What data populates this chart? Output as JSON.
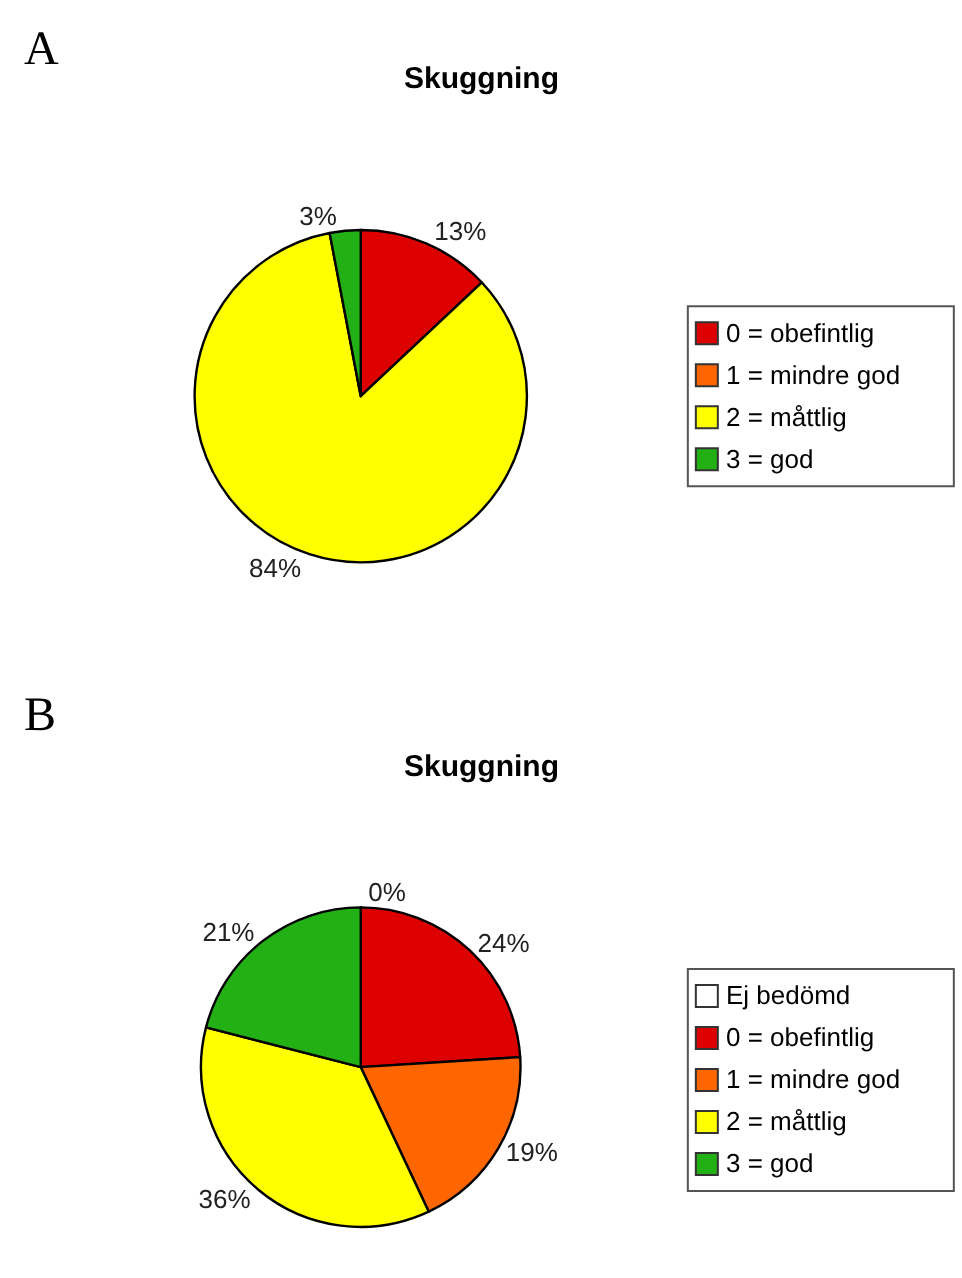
{
  "chart_data": [
    {
      "type": "pie",
      "title": "Skuggning",
      "annotations": [
        "A"
      ],
      "categories": [
        "0 = obefintlig",
        "1 = mindre god",
        "2 = måttlig",
        "3 = god"
      ],
      "values": [
        13,
        0,
        84,
        3
      ],
      "colors": [
        "#dd0000",
        "#ff6600",
        "#ffff00",
        "#22b014"
      ],
      "value_labels": [
        "13%",
        null,
        "84%",
        "3%"
      ],
      "legend": "right"
    },
    {
      "type": "pie",
      "title": "Skuggning",
      "annotations": [
        "B"
      ],
      "categories": [
        "Ej bedömd",
        "0 = obefintlig",
        "1 = mindre god",
        "2 = måttlig",
        "3 = god"
      ],
      "values": [
        0,
        24,
        19,
        36,
        21
      ],
      "colors": [
        "#ffffff",
        "#dd0000",
        "#ff6600",
        "#ffff00",
        "#22b014"
      ],
      "value_labels": [
        "0%",
        "24%",
        "19%",
        "36%",
        "21%"
      ],
      "legend": "right"
    }
  ]
}
